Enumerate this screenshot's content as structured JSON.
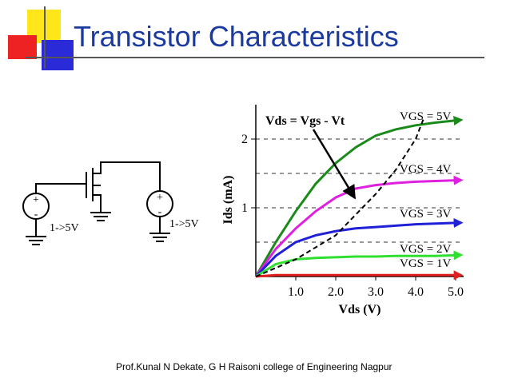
{
  "title": "Transistor Characteristics",
  "footer": "Prof.Kunal N Dekate, G H Raisoni college of Engineering Nagpur",
  "circuit": {
    "sources": [
      {
        "plus": "+",
        "minus": "-",
        "label": "1->5V"
      },
      {
        "plus": "+",
        "minus": "-",
        "label": "1->5V"
      }
    ]
  },
  "chart_data": {
    "type": "line",
    "x_label": "Vds (V)",
    "y_label": "Ids (mA)",
    "xlim": [
      0,
      5.2
    ],
    "ylim": [
      0,
      2.5
    ],
    "xticks": [
      {
        "value": 1,
        "label": "1.0"
      },
      {
        "value": 2,
        "label": "2.0"
      },
      {
        "value": 3,
        "label": "3.0"
      },
      {
        "value": 4,
        "label": "4.0"
      },
      {
        "value": 5,
        "label": "5.0"
      }
    ],
    "yticks": [
      1,
      2
    ],
    "grid_lines": [
      0.5,
      1,
      1.5,
      2
    ],
    "x": [
      0,
      0.5,
      1,
      1.5,
      2,
      2.5,
      3,
      3.5,
      4,
      4.5,
      5
    ],
    "series": [
      {
        "name": "VGS = 5V",
        "color": "#1a8a1a",
        "values": [
          0,
          0.5,
          0.95,
          1.35,
          1.65,
          1.88,
          2.05,
          2.14,
          2.2,
          2.24,
          2.27
        ]
      },
      {
        "name": "VGS = 4V",
        "color": "#e020e0",
        "values": [
          0,
          0.4,
          0.7,
          0.95,
          1.15,
          1.28,
          1.33,
          1.36,
          1.38,
          1.39,
          1.4
        ]
      },
      {
        "name": "VGS = 3V",
        "color": "#2020d8",
        "values": [
          0,
          0.3,
          0.5,
          0.6,
          0.66,
          0.7,
          0.72,
          0.74,
          0.76,
          0.77,
          0.78
        ]
      },
      {
        "name": "VGS = 2V",
        "color": "#30e030",
        "values": [
          0,
          0.18,
          0.25,
          0.27,
          0.28,
          0.29,
          0.29,
          0.3,
          0.3,
          0.3,
          0.31
        ]
      },
      {
        "name": "VGS = 1V",
        "color": "#e02020",
        "values": [
          0,
          0.02,
          0.02,
          0.02,
          0.02,
          0.02,
          0.02,
          0.02,
          0.02,
          0.02,
          0.02
        ]
      }
    ],
    "boundary": {
      "name": "Vds = Vgs - Vt",
      "color": "#000000",
      "x": [
        0,
        1,
        2,
        3,
        3.5,
        4,
        4.2
      ],
      "values": [
        0,
        0.25,
        0.6,
        1.2,
        1.55,
        2.0,
        2.3
      ]
    }
  }
}
